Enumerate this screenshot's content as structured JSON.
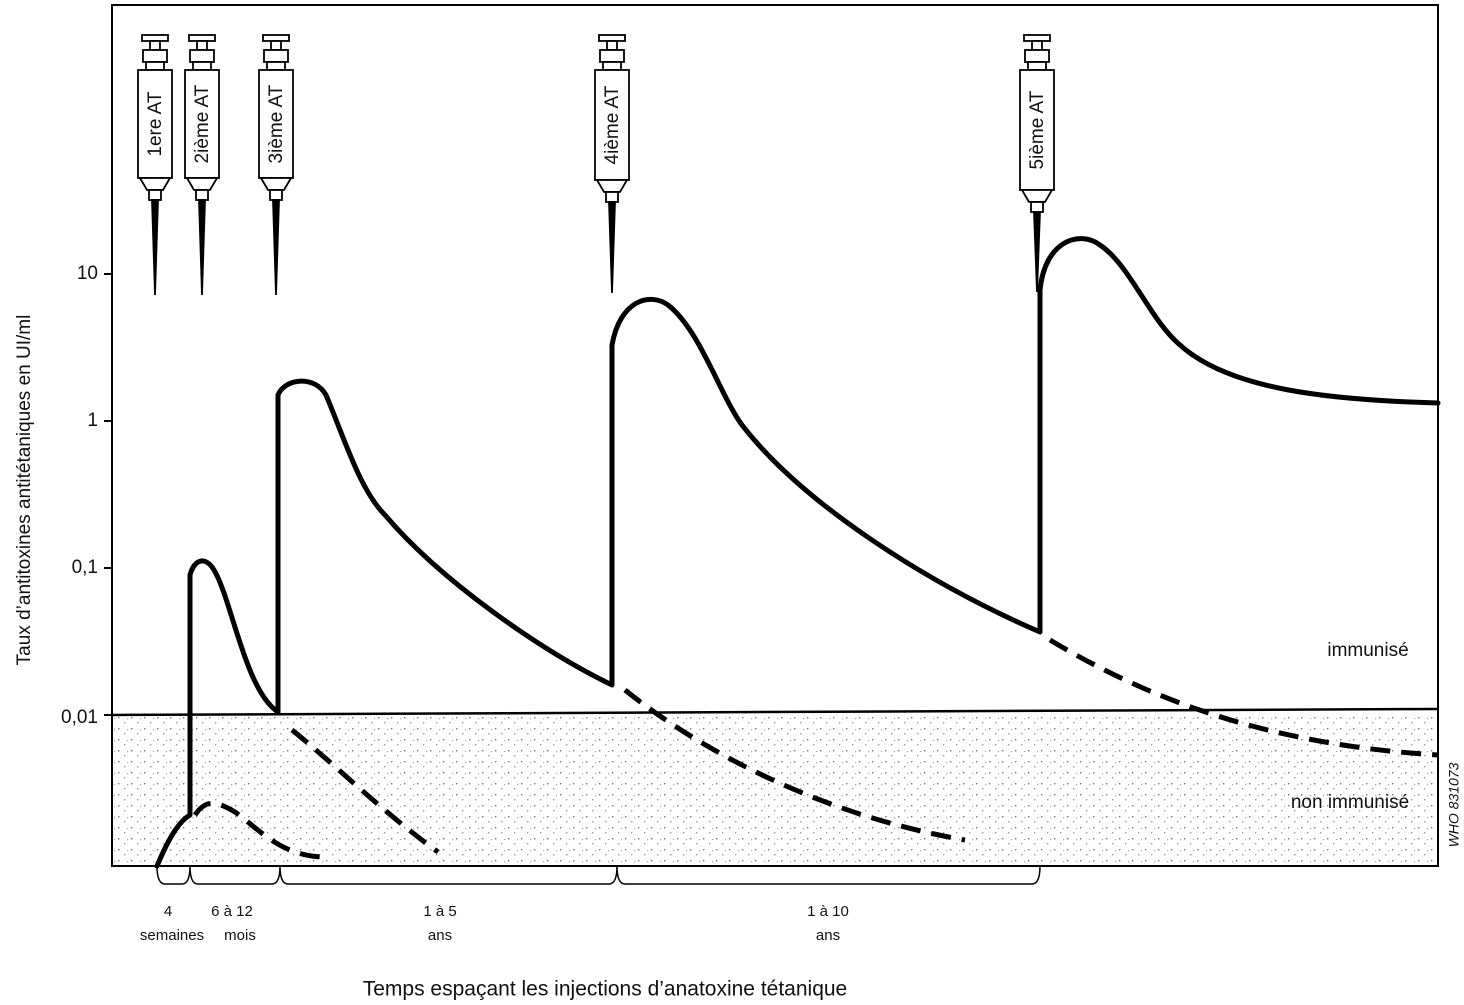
{
  "y_axis": {
    "title": "Taux d’antitoxines antitétaniques en UI/ml",
    "ticks": [
      "10",
      "1",
      "0,1",
      "0,01"
    ]
  },
  "injections": [
    "1ere AT",
    "2ième AT",
    "3ième AT",
    "4ième AT",
    "5ième AT"
  ],
  "zones": {
    "upper": "immunisé",
    "lower": "non immunisé"
  },
  "intervals": [
    {
      "line1": "4",
      "line2": "semaines"
    },
    {
      "line1": "6 à 12",
      "line2": "mois"
    },
    {
      "line1": "1 à 5",
      "line2": "ans"
    },
    {
      "line1": "1 à 10",
      "line2": "ans"
    }
  ],
  "x_axis": {
    "title": "Temps espaçant les injections d’anatoxine tétanique"
  },
  "code": "WHO 831073"
}
